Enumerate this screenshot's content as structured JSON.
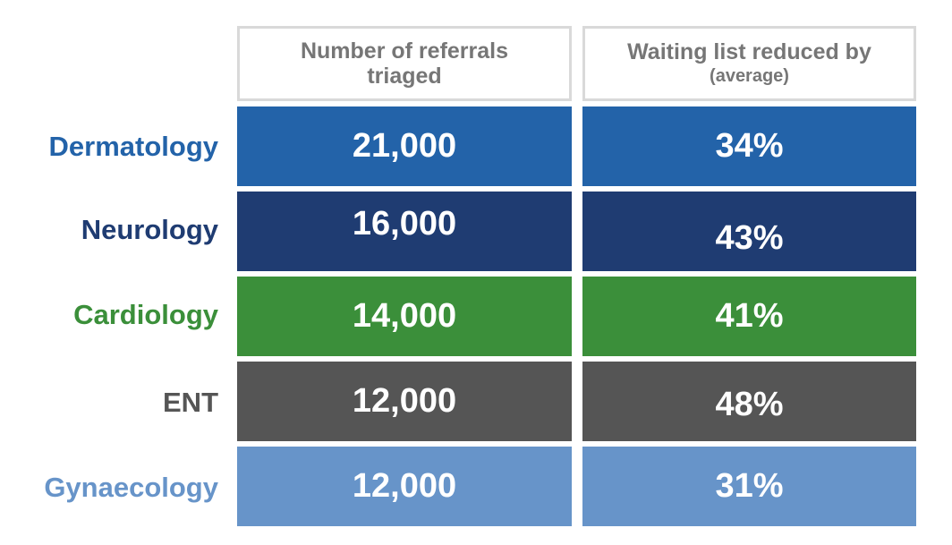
{
  "chart_data": {
    "type": "table",
    "columns": [
      {
        "label": "Number of referrals triaged",
        "sublabel": ""
      },
      {
        "label": "Waiting list reduced by",
        "sublabel": "(average)"
      }
    ],
    "rows": [
      {
        "label": "Dermatology",
        "referrals": "21,000",
        "reduction": "34%",
        "label_color": "#2363a9",
        "cell_color": "#2363a9"
      },
      {
        "label": "Neurology",
        "referrals": "16,000",
        "reduction": "43%",
        "label_color": "#1f3c72",
        "cell_color": "#1f3c72"
      },
      {
        "label": "Cardiology",
        "referrals": "14,000",
        "reduction": "41%",
        "label_color": "#3b8f3a",
        "cell_color": "#3b8f3a"
      },
      {
        "label": "ENT",
        "referrals": "12,000",
        "reduction": "48%",
        "label_color": "#555555",
        "cell_color": "#555555"
      },
      {
        "label": "Gynaecology",
        "referrals": "12,000",
        "reduction": "31%",
        "label_color": "#6794c9",
        "cell_color": "#6794c9"
      }
    ]
  }
}
